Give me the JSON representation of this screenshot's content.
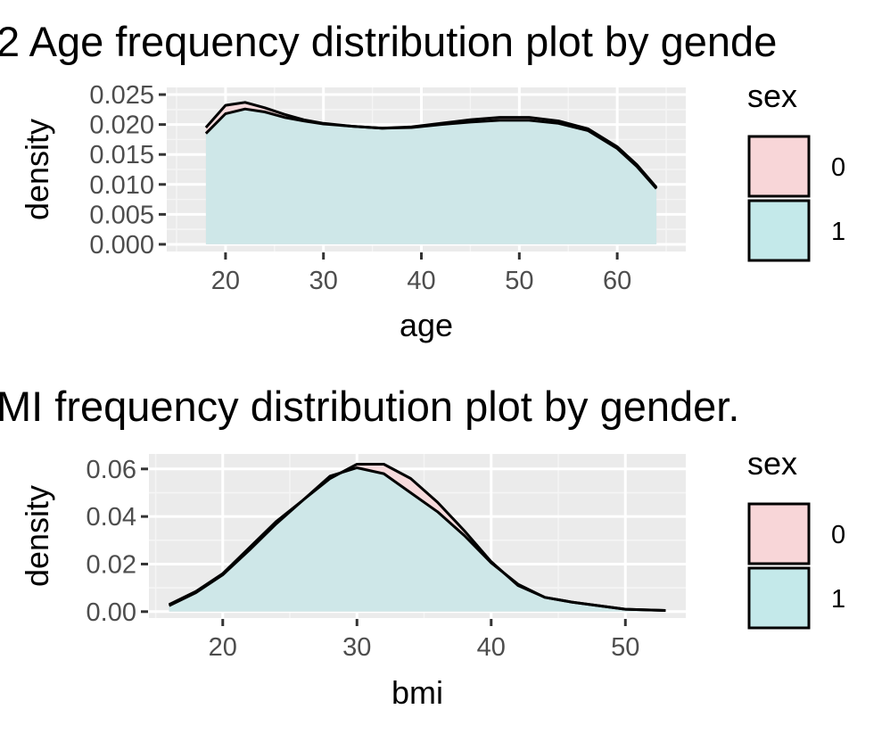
{
  "colors": {
    "panel_background": "#ebebeb",
    "grid_major": "#ffffff",
    "grid_minor": "#f5f5f5",
    "tick_text": "#4d4d4d",
    "tick_mark": "#333333",
    "density_line": "#000000",
    "series_0_fill": "#f8d6d8",
    "series_1_fill": "#c4e9ea"
  },
  "chart_data": [
    {
      "type": "area",
      "title": "2 Age frequency distribution plot by gende",
      "xlabel": "age",
      "ylabel": "density",
      "xlim": [
        14,
        67
      ],
      "ylim": [
        -0.0012,
        0.0262
      ],
      "x_ticks": [
        20,
        30,
        40,
        50,
        60
      ],
      "y_ticks": [
        0.0,
        0.005,
        0.01,
        0.015,
        0.02,
        0.025
      ],
      "x_tick_labels": [
        "20",
        "30",
        "40",
        "50",
        "60"
      ],
      "y_tick_labels": [
        "0.000",
        "0.005",
        "0.010",
        "0.015",
        "0.020",
        "0.025"
      ],
      "grid": true,
      "legend": {
        "title": "sex",
        "position": "right",
        "entries": [
          {
            "label": "0",
            "color": "#f8d6d8"
          },
          {
            "label": "1",
            "color": "#c4e9ea"
          }
        ]
      },
      "series": [
        {
          "name": "0",
          "x": [
            18,
            20,
            22,
            24,
            26,
            28,
            30,
            33,
            36,
            39,
            42,
            45,
            48,
            51,
            54,
            57,
            60,
            62,
            64
          ],
          "y": [
            0.0195,
            0.0232,
            0.0237,
            0.0228,
            0.0217,
            0.0208,
            0.0202,
            0.0197,
            0.0194,
            0.0196,
            0.0202,
            0.0208,
            0.0212,
            0.0212,
            0.0206,
            0.0193,
            0.0163,
            0.0133,
            0.0095
          ]
        },
        {
          "name": "1",
          "x": [
            18,
            20,
            22,
            24,
            26,
            28,
            30,
            33,
            36,
            39,
            42,
            45,
            48,
            51,
            54,
            57,
            60,
            62,
            64
          ],
          "y": [
            0.0185,
            0.0218,
            0.0226,
            0.0221,
            0.0212,
            0.0206,
            0.0201,
            0.0197,
            0.0194,
            0.0195,
            0.02,
            0.0204,
            0.0207,
            0.0207,
            0.0202,
            0.019,
            0.016,
            0.013,
            0.0093
          ]
        }
      ]
    },
    {
      "type": "area",
      "title": "MI frequency distribution plot by gender.",
      "xlabel": "bmi",
      "ylabel": "density",
      "xlim": [
        14.5,
        54.5
      ],
      "ylim": [
        -0.0027,
        0.0663
      ],
      "x_ticks": [
        20,
        30,
        40,
        50
      ],
      "y_ticks": [
        0.0,
        0.02,
        0.04,
        0.06
      ],
      "x_tick_labels": [
        "20",
        "30",
        "40",
        "50"
      ],
      "y_tick_labels": [
        "0.00",
        "0.02",
        "0.04",
        "0.06"
      ],
      "grid": true,
      "legend": {
        "title": "sex",
        "position": "right",
        "entries": [
          {
            "label": "0",
            "color": "#f8d6d8"
          },
          {
            "label": "1",
            "color": "#c4e9ea"
          }
        ]
      },
      "series": [
        {
          "name": "0",
          "x": [
            16,
            18,
            20,
            22,
            24,
            26,
            28,
            30,
            32,
            34,
            36,
            38,
            40,
            42,
            44,
            46,
            48,
            50,
            53
          ],
          "y": [
            0.003,
            0.0085,
            0.016,
            0.027,
            0.038,
            0.047,
            0.056,
            0.062,
            0.062,
            0.056,
            0.046,
            0.034,
            0.021,
            0.011,
            0.006,
            0.004,
            0.0025,
            0.001,
            0.0005
          ]
        },
        {
          "name": "1",
          "x": [
            16,
            18,
            20,
            22,
            24,
            26,
            28,
            30,
            32,
            34,
            36,
            38,
            40,
            42,
            44,
            46,
            48,
            50,
            53
          ],
          "y": [
            0.0025,
            0.008,
            0.0155,
            0.026,
            0.037,
            0.047,
            0.057,
            0.0605,
            0.058,
            0.05,
            0.042,
            0.032,
            0.0205,
            0.0115,
            0.006,
            0.004,
            0.0025,
            0.001,
            0.0005
          ]
        }
      ]
    }
  ]
}
